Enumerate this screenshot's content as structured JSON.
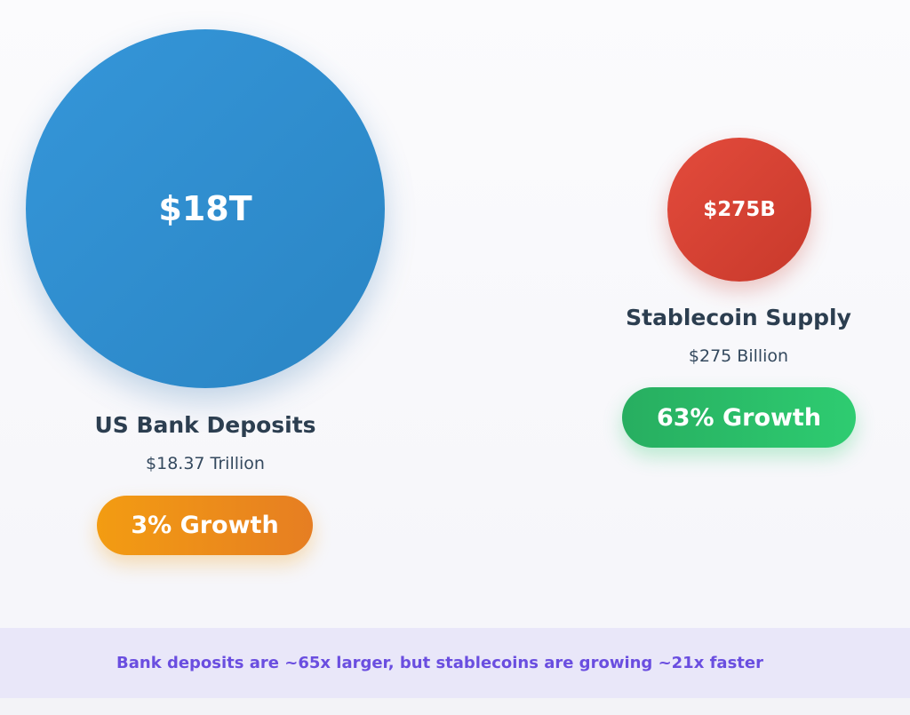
{
  "chart_data": {
    "type": "bubble",
    "title": "",
    "bubbles": [
      {
        "name": "US Bank Deposits",
        "value_label": "$18T",
        "value": 18.37,
        "unit": "Trillion",
        "amount_text": "$18.37 Trillion",
        "growth_text": "3% Growth",
        "growth_percent": 3,
        "color": "#2f8fd2",
        "growth_color": "#f0901a"
      },
      {
        "name": "Stablecoin Supply",
        "value_label": "$275B",
        "value": 275,
        "unit": "Billion",
        "amount_text": "$275 Billion",
        "growth_text": "63% Growth",
        "growth_percent": 63,
        "color": "#d8412f",
        "growth_color": "#2ebd68"
      }
    ],
    "annotation": "Bank deposits are ~65x larger, but stablecoins are growing ~21x faster"
  }
}
